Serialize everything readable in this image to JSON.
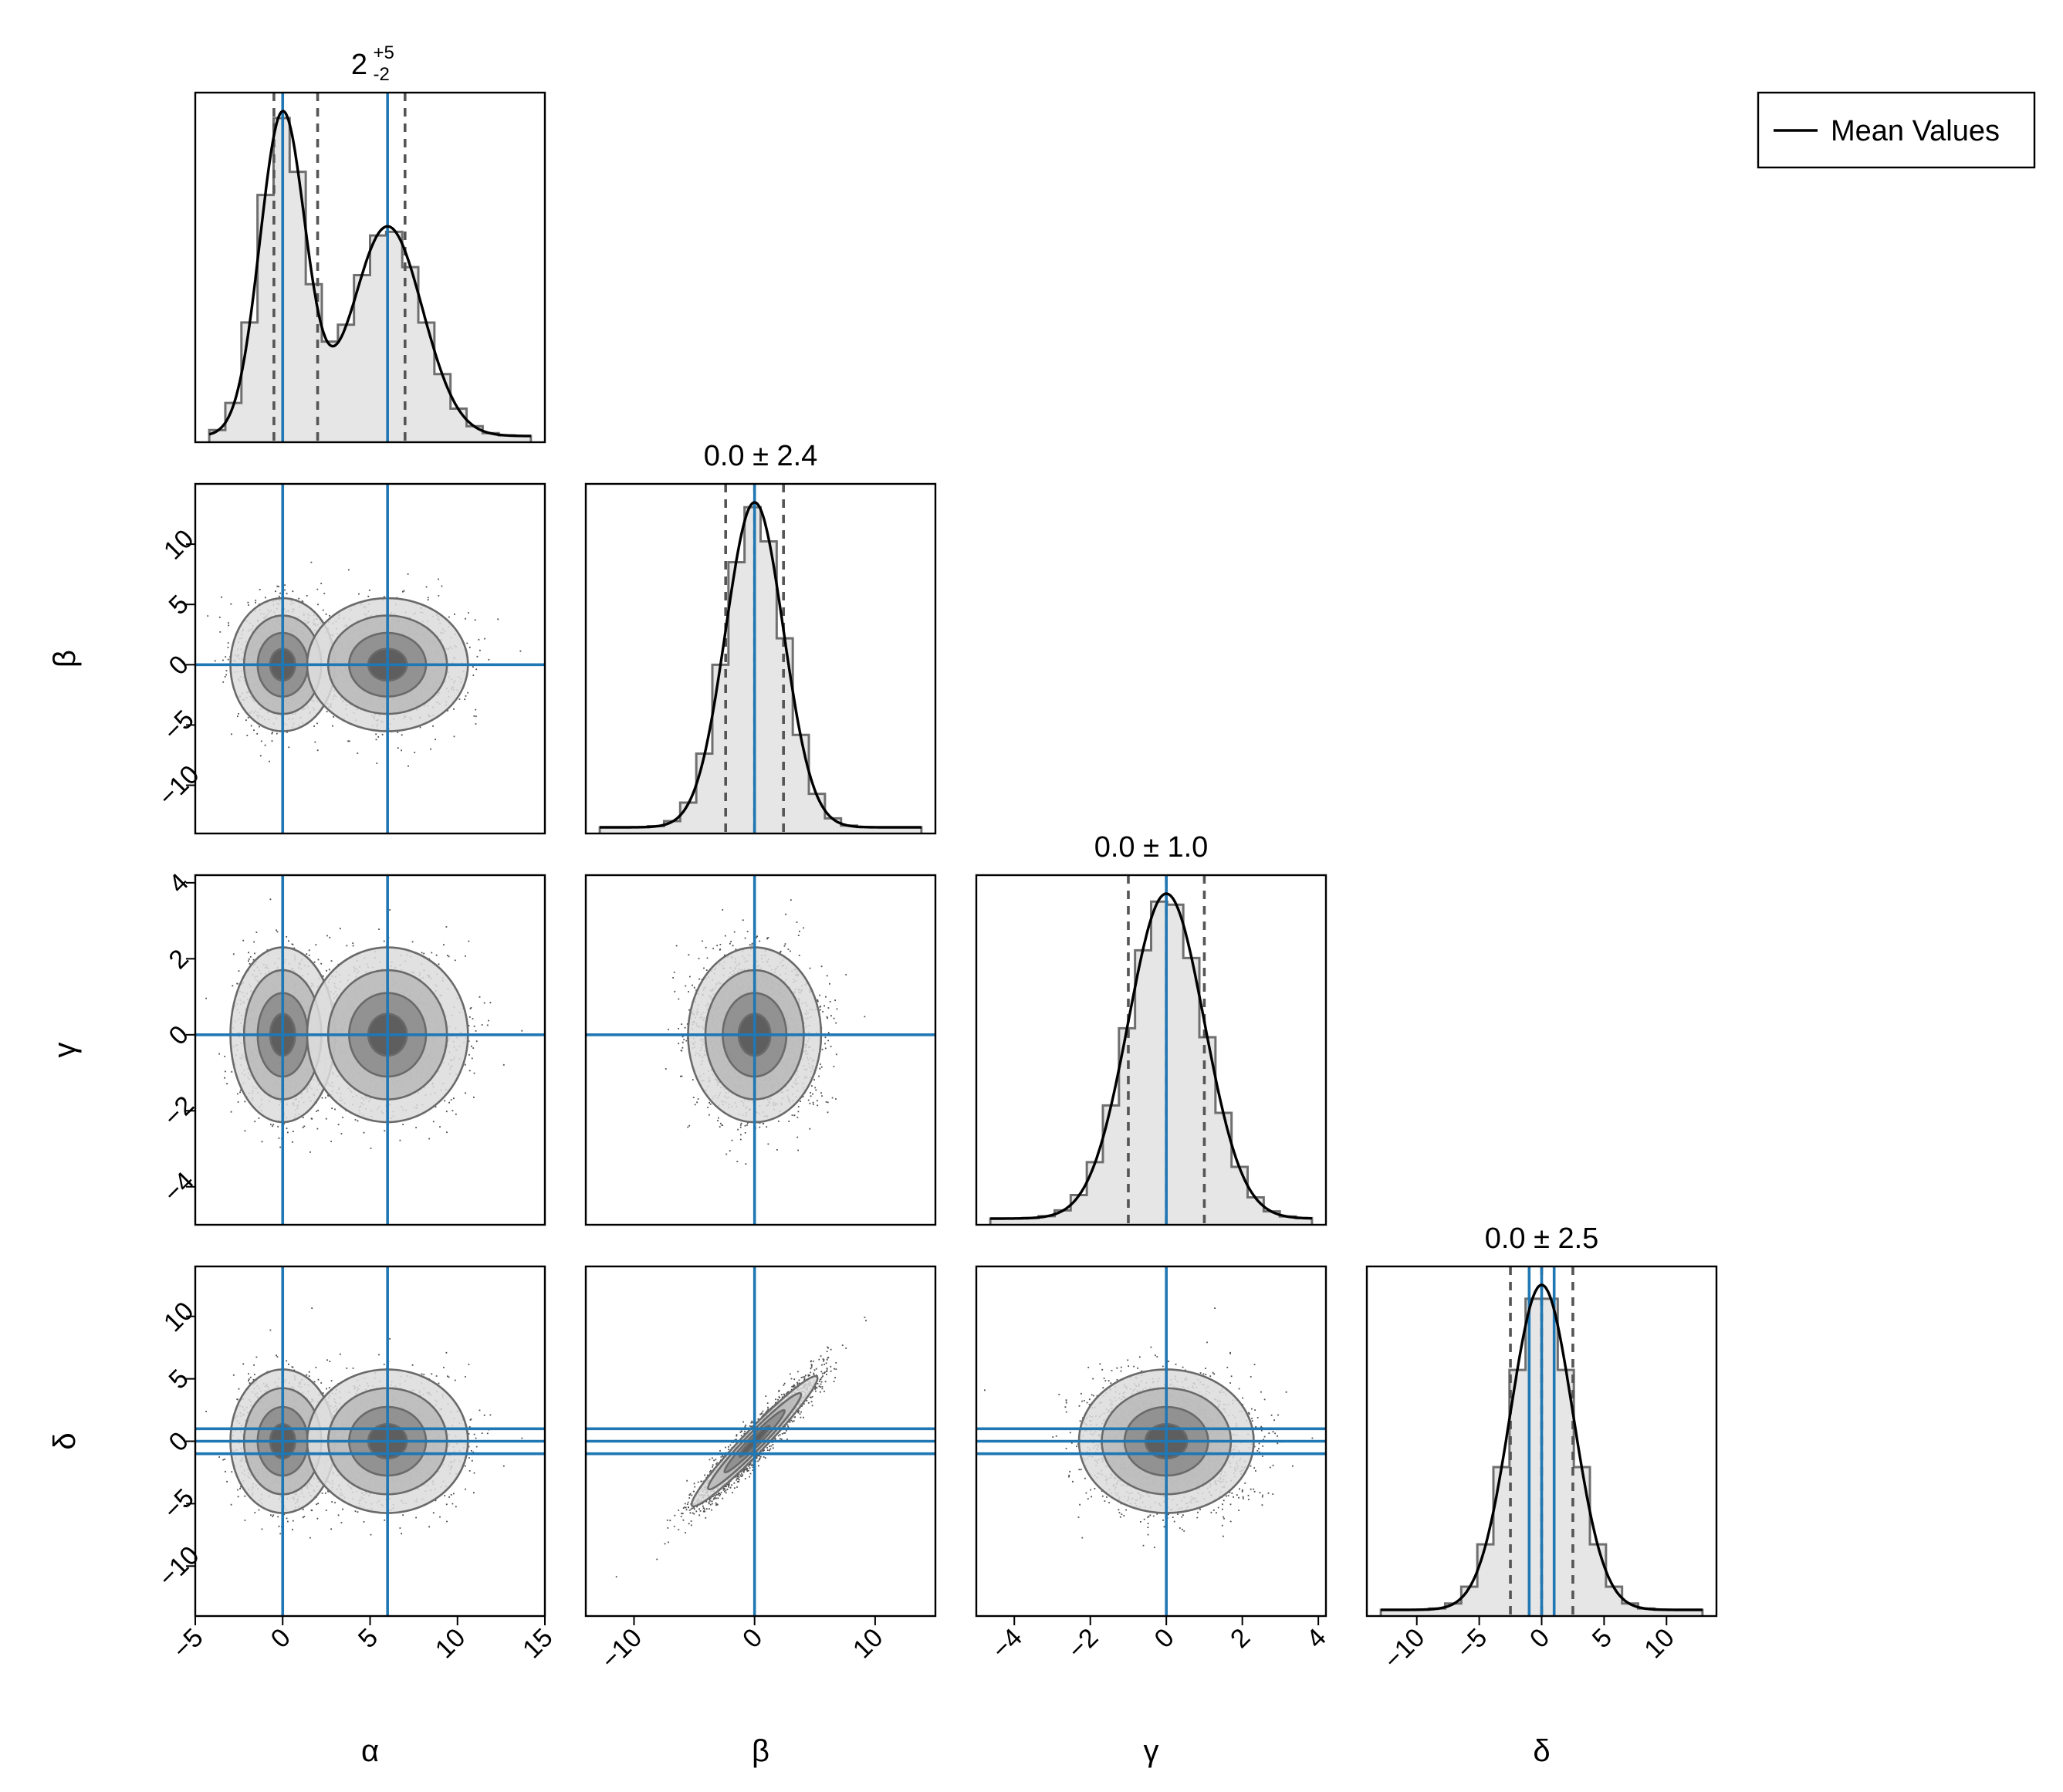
{
  "chart_data": {
    "type": "corner",
    "parameters": [
      {
        "name": "α",
        "label": "α",
        "title": "2",
        "title_sup": "+5",
        "title_sub": "-2",
        "range": [
          -5,
          15
        ],
        "ticks": [
          -5,
          0,
          5,
          10,
          15
        ],
        "quantiles": [
          -0.5,
          2.0,
          7.0
        ],
        "reference_lines": [
          0,
          6
        ],
        "components": [
          {
            "weight": 0.5,
            "mean": 0,
            "sd": 1.3
          },
          {
            "weight": 0.5,
            "mean": 6,
            "sd": 2.0
          }
        ]
      },
      {
        "name": "β",
        "label": "β",
        "title": "0.0 ± 2.4",
        "range": [
          -14,
          15
        ],
        "ticks": [
          -10,
          0,
          10
        ],
        "scatter_ticks": [
          -10,
          -5,
          0,
          5,
          10
        ],
        "quantiles": [
          -2.4,
          0.0,
          2.4
        ],
        "reference_lines": [
          0
        ],
        "components": [
          {
            "weight": 1,
            "mean": 0,
            "sd": 2.4
          }
        ]
      },
      {
        "name": "γ",
        "label": "γ",
        "title": "0.0 ± 1.0",
        "range": [
          -5,
          4.2
        ],
        "ticks": [
          -4,
          -2,
          0,
          2,
          4
        ],
        "quantiles": [
          -1.0,
          0.0,
          1.0
        ],
        "reference_lines": [
          0
        ],
        "components": [
          {
            "weight": 1,
            "mean": 0,
            "sd": 1.0
          }
        ]
      },
      {
        "name": "δ",
        "label": "δ",
        "title": "0.0 ± 2.5",
        "range": [
          -14,
          14
        ],
        "ticks": [
          -10,
          -5,
          0,
          5,
          10
        ],
        "quantiles": [
          -2.5,
          0.0,
          2.5
        ],
        "reference_lines": [
          -1,
          0,
          1
        ],
        "components": [
          {
            "weight": 1,
            "mean": 0,
            "sd": 2.5
          }
        ]
      }
    ],
    "correlations": {
      "3-1": 0.95
    },
    "legend": {
      "entries": [
        "Mean Values"
      ],
      "position": "top-right"
    }
  }
}
